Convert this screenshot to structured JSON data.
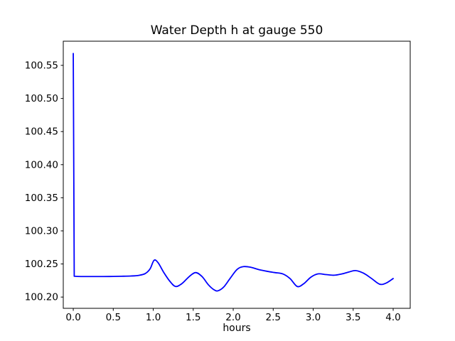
{
  "figure": {
    "background": "#ffffff",
    "spine_color": "#000000",
    "text_color": "#000000"
  },
  "chart_data": {
    "type": "line",
    "title": "Water Depth h at gauge 550",
    "xlabel": "hours",
    "ylabel": "",
    "grid": false,
    "legend": null,
    "xlim": [
      -0.125,
      4.213
    ],
    "ylim": [
      100.183,
      100.5865
    ],
    "xticks": [
      0.0,
      0.5,
      1.0,
      1.5,
      2.0,
      2.5,
      3.0,
      3.5,
      4.0
    ],
    "xtick_labels": [
      "0.0",
      "0.5",
      "1.0",
      "1.5",
      "2.0",
      "2.5",
      "3.0",
      "3.5",
      "4.0"
    ],
    "yticks": [
      100.2,
      100.25,
      100.3,
      100.35,
      100.4,
      100.45,
      100.5,
      100.55
    ],
    "ytick_labels": [
      "100.20",
      "100.25",
      "100.30",
      "100.35",
      "100.40",
      "100.45",
      "100.50",
      "100.55"
    ],
    "series": [
      {
        "name": "water-depth-h",
        "color": "#0000ff",
        "linewidth": 1.8,
        "x": [
          0.0,
          0.012,
          0.05,
          0.15,
          0.3,
          0.45,
          0.6,
          0.72,
          0.82,
          0.9,
          0.96,
          1.01,
          1.06,
          1.13,
          1.21,
          1.28,
          1.36,
          1.45,
          1.53,
          1.61,
          1.69,
          1.76,
          1.81,
          1.88,
          1.96,
          2.05,
          2.13,
          2.22,
          2.32,
          2.42,
          2.52,
          2.62,
          2.71,
          2.8,
          2.88,
          2.97,
          3.06,
          3.16,
          3.26,
          3.36,
          3.45,
          3.53,
          3.63,
          3.73,
          3.83,
          3.91,
          4.0
        ],
        "y": [
          100.568,
          100.2315,
          100.2312,
          100.231,
          100.231,
          100.2311,
          100.2314,
          100.2318,
          100.2328,
          100.2355,
          100.2425,
          100.2555,
          100.252,
          100.2375,
          100.2235,
          100.216,
          100.2205,
          100.231,
          100.237,
          100.231,
          100.2185,
          100.211,
          100.2095,
          100.215,
          100.228,
          100.242,
          100.246,
          100.245,
          100.2415,
          100.239,
          100.237,
          100.235,
          100.228,
          100.216,
          100.22,
          100.23,
          100.235,
          100.234,
          100.233,
          100.235,
          100.238,
          100.24,
          100.236,
          100.228,
          100.2195,
          100.221,
          100.228
        ]
      }
    ]
  }
}
